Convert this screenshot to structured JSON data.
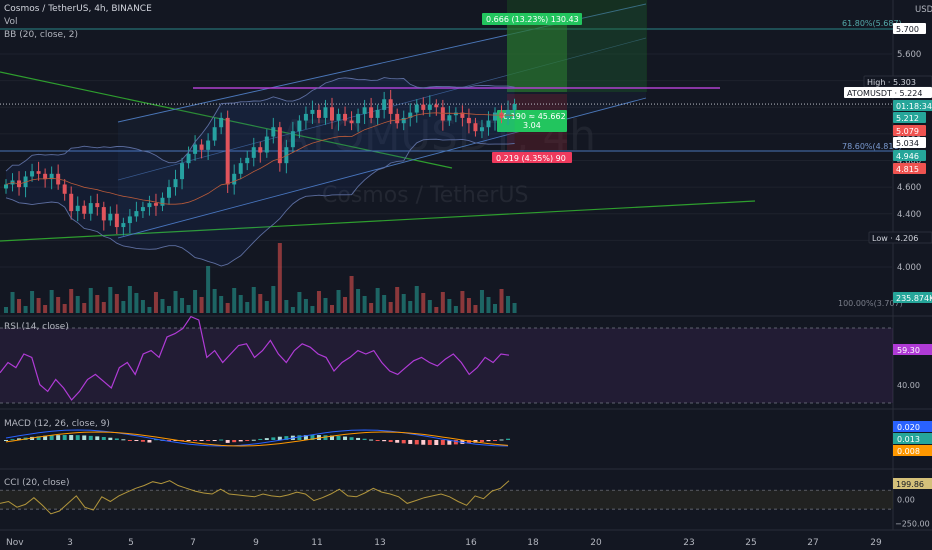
{
  "header": {
    "symbol": "Cosmos / TetherUS, 4h, BINANCE",
    "vol_label": "Vol",
    "bb_label": "BB (20, close, 2)",
    "currency": "USDT",
    "watermark_symbol": "ATOMUSDT, 4h",
    "watermark_name": "Cosmos / TetherUS"
  },
  "colors": {
    "bg": "#131722",
    "up": "#26a69a",
    "down": "#ef5350",
    "grid": "#1e222d",
    "rsi": "#b03bd6",
    "cci": "#b2963c",
    "bb": "#5d6ea0"
  },
  "price_axis": {
    "ticks": [
      "5.600",
      "5.400",
      "5.200",
      "5.000",
      "4.800",
      "4.600",
      "4.400",
      "4.200",
      "4.000"
    ],
    "tags": [
      {
        "text": "5.700",
        "bg": "#ffffff",
        "fg": "#131722"
      },
      {
        "text": "High · 5.303",
        "bg": "#131722",
        "fg": "#d1d4dc"
      },
      {
        "text": "ATOMUSDT · 5.224",
        "bg": "#ffffff",
        "fg": "#131722"
      },
      {
        "text": "01:18:34",
        "bg": "#26a69a",
        "fg": "#ffffff"
      },
      {
        "text": "5.212",
        "bg": "#26a69a",
        "fg": "#ffffff"
      },
      {
        "text": "5.079",
        "bg": "#ef5350",
        "fg": "#ffffff"
      },
      {
        "text": "5.034",
        "bg": "#ffffff",
        "fg": "#131722"
      },
      {
        "text": "4.946",
        "bg": "#26a69a",
        "fg": "#ffffff"
      },
      {
        "text": "4.815",
        "bg": "#ef5350",
        "fg": "#ffffff"
      },
      {
        "text": "Low · 4.206",
        "bg": "#131722",
        "fg": "#d1d4dc"
      },
      {
        "text": "235.874K",
        "bg": "#26a69a",
        "fg": "#ffffff"
      }
    ]
  },
  "annotations": {
    "fib_618": "61.80%(5.687)",
    "fib_786": "78.60%(4.816)",
    "fib_100": "100.00%(3.707)",
    "target": "0.666 (13.23%) 130.43",
    "entry_line1": "0.190 ≈ 45.662",
    "entry_line2": "3.04",
    "stop": "0.219 (4.35%) 90"
  },
  "rsi": {
    "label": "RSI (14, close)",
    "value": "59.30",
    "tick": "40.00"
  },
  "macd": {
    "label": "MACD (12, 26, close, 9)",
    "values": [
      "0.020",
      "0.013",
      "0.008"
    ]
  },
  "cci": {
    "label": "CCI (20, close)",
    "value": "199.86",
    "ticks": [
      "0.00",
      "−250.00"
    ]
  },
  "time_axis": [
    "Nov",
    "3",
    "5",
    "7",
    "9",
    "11",
    "13",
    "16",
    "18",
    "20",
    "23",
    "25",
    "27",
    "29"
  ],
  "chart_data": {
    "type": "candlestick",
    "title": "Cosmos / TetherUS, 4h, BINANCE",
    "price_range": [
      3.9,
      5.8
    ],
    "closes": [
      4.62,
      4.65,
      4.6,
      4.68,
      4.72,
      4.7,
      4.66,
      4.7,
      4.62,
      4.55,
      4.42,
      4.46,
      4.4,
      4.48,
      4.45,
      4.35,
      4.4,
      4.3,
      4.33,
      4.38,
      4.42,
      4.45,
      4.48,
      4.46,
      4.52,
      4.6,
      4.66,
      4.78,
      4.85,
      4.92,
      4.88,
      4.95,
      5.05,
      5.12,
      4.62,
      4.7,
      4.78,
      4.82,
      4.9,
      4.86,
      4.98,
      5.05,
      4.78,
      4.9,
      5.02,
      5.1,
      5.15,
      5.18,
      5.12,
      5.2,
      5.1,
      5.15,
      5.1,
      5.08,
      5.15,
      5.2,
      5.12,
      5.18,
      5.26,
      5.15,
      5.08,
      5.12,
      5.16,
      5.22,
      5.18,
      5.22,
      5.2,
      5.1,
      5.14,
      5.16,
      5.12,
      5.08,
      5.02,
      5.05,
      5.1,
      5.16,
      5.12,
      5.18,
      5.224
    ],
    "high": 5.303,
    "low": 4.206,
    "last": 5.224,
    "rsi_series": [
      49,
      55,
      52,
      60,
      58,
      42,
      38,
      45,
      40,
      33,
      38,
      45,
      48,
      44,
      40,
      52,
      55,
      48,
      60,
      62,
      58,
      70,
      72,
      75,
      82,
      80,
      58,
      62,
      55,
      60,
      65,
      66,
      58,
      62,
      68,
      60,
      55,
      62,
      66,
      64,
      60,
      58,
      50,
      55,
      58,
      62,
      60,
      62,
      55,
      50,
      48,
      52,
      56,
      58,
      55,
      53,
      57,
      60,
      55,
      48,
      52,
      58,
      55,
      60,
      59.3
    ],
    "rsi_ylim": [
      30,
      80
    ],
    "cci_series": [
      -40,
      -20,
      -80,
      -50,
      20,
      -60,
      -150,
      -120,
      -40,
      40,
      -80,
      -110,
      30,
      -20,
      40,
      80,
      120,
      150,
      190,
      170,
      200,
      150,
      120,
      90,
      70,
      60,
      110,
      60,
      50,
      40,
      30,
      60,
      40,
      30,
      50,
      80,
      60,
      -10,
      20,
      60,
      110,
      40,
      30,
      70,
      120,
      80,
      60,
      30,
      -40,
      -10,
      20,
      40,
      60,
      30,
      -20,
      -60,
      40,
      10,
      90,
      120,
      199.86
    ],
    "cci_ylim": [
      -300,
      250
    ]
  }
}
